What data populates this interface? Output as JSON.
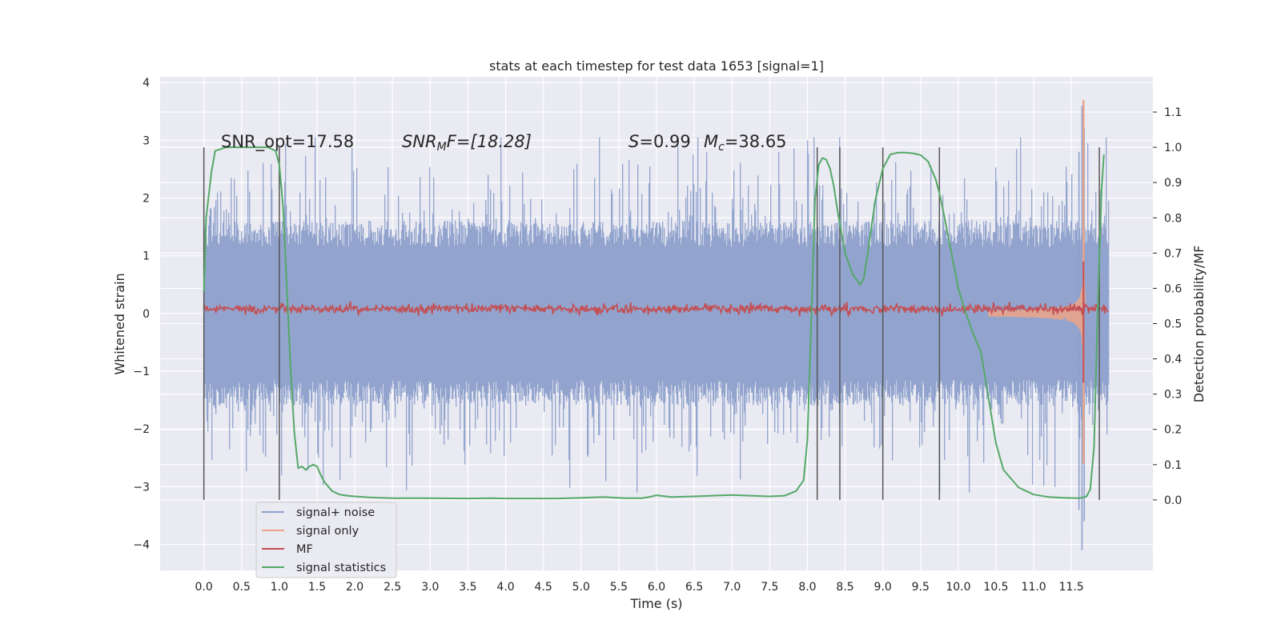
{
  "chart_data": {
    "type": "line",
    "title": "stats at each timestep for test data 1653 [signal=1]",
    "xlabel": "Time (s)",
    "ylabel": "Whitened strain",
    "ylabel_right": "Detection probability/MF",
    "xlim": [
      -0.58,
      12.58
    ],
    "ylim": [
      -4.45,
      4.1
    ],
    "ylim_right": [
      -0.2,
      1.2
    ],
    "x_ticks": [
      "0.0",
      "0.5",
      "1.0",
      "1.5",
      "2.0",
      "2.5",
      "3.0",
      "3.5",
      "4.0",
      "4.5",
      "5.0",
      "5.5",
      "6.0",
      "6.5",
      "7.0",
      "7.5",
      "8.0",
      "8.5",
      "9.0",
      "9.5",
      "10.0",
      "10.5",
      "11.0",
      "11.5"
    ],
    "y_ticks": [
      "4",
      "3",
      "2",
      "1",
      "0",
      "−1",
      "−2",
      "−3",
      "−4"
    ],
    "y_ticks_right": [
      "1.1",
      "1.0",
      "0.9",
      "0.8",
      "0.7",
      "0.6",
      "0.5",
      "0.4",
      "0.3",
      "0.2",
      "0.1",
      "0.0"
    ],
    "grid": true,
    "legend_position": "lower-left",
    "annotations": [
      {
        "text": "SNR_opt=17.58",
        "x": 0.2,
        "y": 2.93
      },
      {
        "text": "SNR_MF=[18.28]",
        "x": 2.6,
        "y": 2.93
      },
      {
        "text": "S=0.99",
        "x": 5.6,
        "y": 2.93
      },
      {
        "text": "M_c=38.65",
        "x": 6.6,
        "y": 2.93
      }
    ],
    "vertical_markers": [
      0.0,
      1.0,
      8.13,
      8.43,
      9.0,
      9.75,
      11.87
    ],
    "series": [
      {
        "name": "signal+ noise",
        "color": "#8da0cb",
        "axis": "left",
        "description_of_shape": "dense noise band between about -1.6 and 1.6 with spikes to about ±3, sharp burst to about 3.6 / -4.1 near t=11.65",
        "x_range": [
          0.0,
          12.0
        ],
        "typical_amplitude": 1.6,
        "max_spike": 3.6,
        "min_spike": -4.1
      },
      {
        "name": "signal only",
        "color": "#e8a58c",
        "axis": "left",
        "description_of_shape": "chirp growing from near zero around t=10.5 to peak about 3.7 at t=11.66",
        "peak_time": 11.66,
        "peak_value": 3.7
      },
      {
        "name": "MF",
        "color": "#c44e52",
        "axis": "left",
        "description_of_shape": "flat noisy band around 0.08 with amplitude about 0.08, spike near t=11.65",
        "baseline": 0.08,
        "amplitude": 0.08
      },
      {
        "name": "signal statistics",
        "color": "#55a868",
        "axis": "right",
        "x": [
          0.0,
          0.03,
          0.1,
          0.15,
          0.3,
          0.5,
          0.7,
          0.85,
          0.95,
          1.0,
          1.05,
          1.1,
          1.15,
          1.2,
          1.25,
          1.3,
          1.35,
          1.4,
          1.45,
          1.5,
          1.55,
          1.6,
          1.7,
          1.8,
          1.9,
          2.0,
          2.2,
          2.5,
          3.0,
          3.5,
          3.8,
          4.0,
          4.3,
          4.7,
          5.0,
          5.3,
          5.6,
          5.8,
          5.9,
          6.0,
          6.2,
          6.5,
          7.0,
          7.5,
          7.7,
          7.85,
          7.95,
          8.0,
          8.05,
          8.1,
          8.15,
          8.2,
          8.25,
          8.3,
          8.35,
          8.4,
          8.5,
          8.6,
          8.7,
          8.75,
          8.8,
          8.9,
          9.0,
          9.1,
          9.2,
          9.3,
          9.4,
          9.5,
          9.6,
          9.7,
          9.75,
          9.8,
          9.9,
          10.0,
          10.1,
          10.2,
          10.3,
          10.4,
          10.5,
          10.6,
          10.8,
          11.0,
          11.2,
          11.4,
          11.6,
          11.65,
          11.7,
          11.75,
          11.8,
          11.85,
          11.9,
          11.93
        ],
        "y": [
          0.59,
          0.8,
          0.93,
          0.99,
          1.0,
          1.0,
          1.0,
          1.0,
          0.99,
          0.95,
          0.83,
          0.6,
          0.37,
          0.19,
          0.09,
          0.095,
          0.085,
          0.095,
          0.1,
          0.095,
          0.07,
          0.05,
          0.025,
          0.015,
          0.012,
          0.01,
          0.007,
          0.005,
          0.005,
          0.004,
          0.005,
          0.004,
          0.004,
          0.004,
          0.006,
          0.008,
          0.005,
          0.005,
          0.008,
          0.013,
          0.008,
          0.01,
          0.014,
          0.01,
          0.012,
          0.025,
          0.055,
          0.17,
          0.5,
          0.85,
          0.95,
          0.97,
          0.965,
          0.94,
          0.89,
          0.82,
          0.7,
          0.64,
          0.61,
          0.63,
          0.7,
          0.85,
          0.94,
          0.98,
          0.985,
          0.985,
          0.983,
          0.978,
          0.96,
          0.91,
          0.87,
          0.82,
          0.71,
          0.6,
          0.53,
          0.47,
          0.42,
          0.29,
          0.16,
          0.085,
          0.035,
          0.015,
          0.008,
          0.006,
          0.005,
          0.007,
          0.01,
          0.03,
          0.15,
          0.55,
          0.88,
          0.98
        ]
      }
    ]
  },
  "ui": {
    "title": "stats at each timestep for test data 1653 [signal=1]",
    "xlabel": "Time (s)",
    "ylabel": "Whitened strain",
    "ylabel_right": "Detection probability/MF",
    "annot_snr_opt": "SNR_opt=17.58",
    "annot_snr_mf_main": "SNR",
    "annot_snr_mf_sub": "M",
    "annot_snr_mf_rest": "F=[18.28]",
    "annot_s_main": "S",
    "annot_s_rest": "=0.99",
    "annot_mc_main": "M",
    "annot_mc_sub": "c",
    "annot_mc_rest": "=38.65",
    "legend": [
      "signal+ noise",
      "signal only",
      "MF",
      "signal statistics"
    ]
  }
}
